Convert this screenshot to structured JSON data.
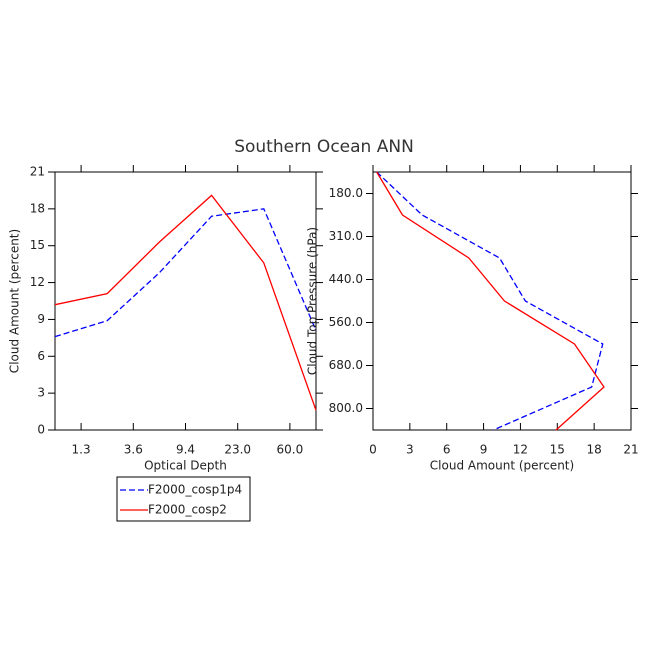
{
  "title": "Southern Ocean ANN",
  "chart_data": [
    {
      "type": "line",
      "orientation": "vertical",
      "xlabel": "Optical Depth",
      "ylabel": "Cloud Amount (percent)",
      "x": [
        0,
        1,
        2,
        3,
        4,
        5
      ],
      "xlim": [
        0,
        5
      ],
      "xticks": [
        {
          "value": 0.5,
          "label": "1.3"
        },
        {
          "value": 1.5,
          "label": "3.6"
        },
        {
          "value": 2.5,
          "label": "9.4"
        },
        {
          "value": 3.5,
          "label": "23.0"
        },
        {
          "value": 4.5,
          "label": "60.0"
        }
      ],
      "ylim": [
        0,
        21
      ],
      "yticks": [
        0,
        3,
        6,
        9,
        12,
        15,
        18,
        21
      ],
      "series": [
        {
          "name": "F2000_cosp1p4",
          "color": "#0000ff",
          "linestyle": "dashed",
          "values": [
            7.6,
            8.9,
            12.8,
            17.4,
            18.0,
            8.1
          ]
        },
        {
          "name": "F2000_cosp2",
          "color": "#ff0000",
          "linestyle": "solid",
          "values": [
            10.2,
            11.1,
            15.3,
            19.1,
            13.6,
            1.6
          ]
        }
      ]
    },
    {
      "type": "line",
      "orientation": "horizontal",
      "xlabel": "Cloud Amount (percent)",
      "ylabel": "Cloud Top Pressure (hPa)",
      "y": [
        0,
        1,
        2,
        3,
        4,
        5,
        6
      ],
      "ylim": [
        6,
        0
      ],
      "yticks": [
        {
          "value": 0.5,
          "label": "180.0"
        },
        {
          "value": 1.5,
          "label": "310.0"
        },
        {
          "value": 2.5,
          "label": "440.0"
        },
        {
          "value": 3.5,
          "label": "560.0"
        },
        {
          "value": 4.5,
          "label": "680.0"
        },
        {
          "value": 5.5,
          "label": "800.0"
        }
      ],
      "xlim": [
        0,
        21
      ],
      "xticks": [
        0,
        3,
        6,
        9,
        12,
        15,
        18,
        21
      ],
      "series": [
        {
          "color": "#0000ff",
          "linestyle": "dashed",
          "values": [
            0.3,
            4.0,
            10.3,
            12.4,
            18.7,
            17.8,
            9.8
          ]
        },
        {
          "color": "#ff0000",
          "linestyle": "solid",
          "values": [
            0.3,
            2.4,
            7.8,
            10.7,
            16.4,
            18.8,
            14.9
          ]
        }
      ]
    }
  ]
}
